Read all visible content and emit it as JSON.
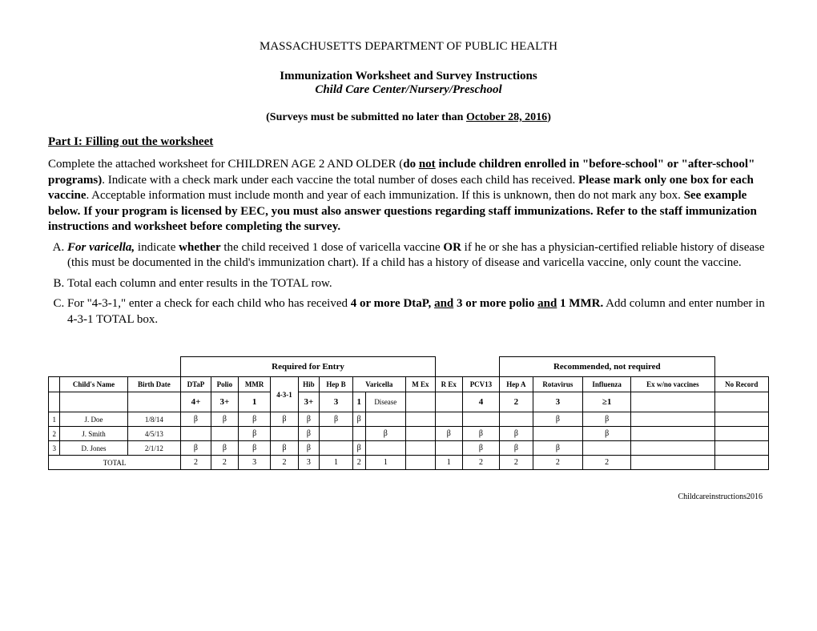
{
  "header": {
    "dept": "MASSACHUSETTS DEPARTMENT OF PUBLIC HEALTH",
    "title": "Immunization Worksheet and Survey Instructions",
    "subtitle": "Child Care Center/Nursery/Preschool",
    "deadline_prefix": "(Surveys must be submitted no later than ",
    "deadline_date": "October 28, 2016",
    "deadline_suffix": ")"
  },
  "part1": {
    "heading": "Part I: Filling out the worksheet",
    "p1_a": "Complete the attached worksheet for CHILDREN AGE 2 AND OLDER (",
    "p1_b": "do ",
    "p1_c": "not",
    "p1_d": " include children enrolled in \"before-school\" or \"after-school\" programs)",
    "p1_e": ".  Indicate with a check mark under each vaccine the total number of doses each child has received.  ",
    "p1_f": "Please mark only one box for each vaccine",
    "p1_g": ".  Acceptable information must include month and year of each immunization.  If this is unknown, then do not mark any box.  ",
    "p1_h": "See example below. If your program is licensed by EEC, you must also answer questions regarding staff immunizations. Refer to the staff immunization instructions and worksheet before completing the survey.",
    "items": {
      "A_a": "For varicella,",
      "A_b": " indicate ",
      "A_c": "whether",
      "A_d": " the child received 1 dose of varicella vaccine ",
      "A_e": "OR",
      "A_f": " if he or she has a physician-certified reliable history of disease (this must be documented in the child's immunization chart). If a child has a history of disease and varicella vaccine, only count the vaccine.",
      "B": "Total each column and enter results in the TOTAL row.",
      "C_a": "For \"4-3-1,\" enter a check for each child who has received ",
      "C_b": "4 or more DtaP, ",
      "C_c": "and",
      "C_d": " 3 or more polio ",
      "C_e": "and",
      "C_f": " 1 MMR.",
      "C_g": "  Add column and enter number in 4-3-1 TOTAL box."
    }
  },
  "table": {
    "group_required": "Required for Entry",
    "group_recommended": "Recommended, not required",
    "columns": {
      "childs_name": "Child's Name",
      "birth_date": "Birth Date",
      "dtap": "DTaP",
      "polio": "Polio",
      "mmr": "MMR",
      "c431": "4-3-1",
      "hib": "Hib",
      "hepb": "Hep B",
      "varicella": "Varicella",
      "mex": "M Ex",
      "rex": "R Ex",
      "pcv13": "PCV13",
      "hepa": "Hep A",
      "rotavirus": "Rotavirus",
      "influenza": "Influenza",
      "exwno": "Ex w/no vaccines",
      "norecord": "No Record"
    },
    "criteria": {
      "dtap": "4+",
      "polio": "3+",
      "mmr": "1",
      "hib": "3+",
      "hepb": "3",
      "var1": "1",
      "var_disease": "Disease",
      "pcv13": "4",
      "hepa": "2",
      "rotavirus": "3",
      "influenza": "≥1"
    },
    "rows": [
      {
        "n": "1",
        "name": "J. Doe",
        "date": "1/8/14",
        "dtap": "β",
        "polio": "β",
        "mmr": "β",
        "c431": "β",
        "hib": "β",
        "hepb": "β",
        "var1": "β",
        "vard": "",
        "mex": "",
        "rex": "",
        "pcv13": "",
        "hepa": "",
        "rota": "β",
        "flu": "β",
        "exw": "",
        "nor": ""
      },
      {
        "n": "2",
        "name": "J. Smith",
        "date": "4/5/13",
        "dtap": "",
        "polio": "",
        "mmr": "β",
        "c431": "",
        "hib": "β",
        "hepb": "",
        "var1": "",
        "vard": "β",
        "mex": "",
        "rex": "β",
        "pcv13": "β",
        "hepa": "β",
        "rota": "",
        "flu": "β",
        "exw": "",
        "nor": ""
      },
      {
        "n": "3",
        "name": "D. Jones",
        "date": "2/1/12",
        "dtap": "β",
        "polio": "β",
        "mmr": "β",
        "c431": "β",
        "hib": "β",
        "hepb": "",
        "var1": "β",
        "vard": "",
        "mex": "",
        "rex": "",
        "pcv13": "β",
        "hepa": "β",
        "rota": "β",
        "flu": "",
        "exw": "",
        "nor": ""
      }
    ],
    "total_label": "TOTAL",
    "totals": {
      "dtap": "2",
      "polio": "2",
      "mmr": "3",
      "c431": "2",
      "hib": "3",
      "hepb": "1",
      "var1": "2",
      "vard": "1",
      "mex": "",
      "rex": "1",
      "pcv13": "2",
      "hepa": "2",
      "rota": "2",
      "flu": "2",
      "exw": "",
      "nor": ""
    }
  },
  "footer": "Childcareinstructions2016"
}
